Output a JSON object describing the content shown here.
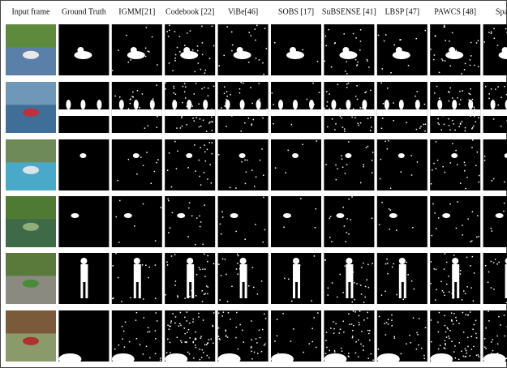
{
  "figure": {
    "column_headers": [
      "Input frame",
      "Ground Truth",
      "IGMM[21]",
      "Codebook [22]",
      "ViBe[46]",
      "SOBS [17]",
      "SuBSENSE [41]",
      "LBSP [47]",
      "PAWCS [48]",
      "Spatio ["
    ]
  }
}
